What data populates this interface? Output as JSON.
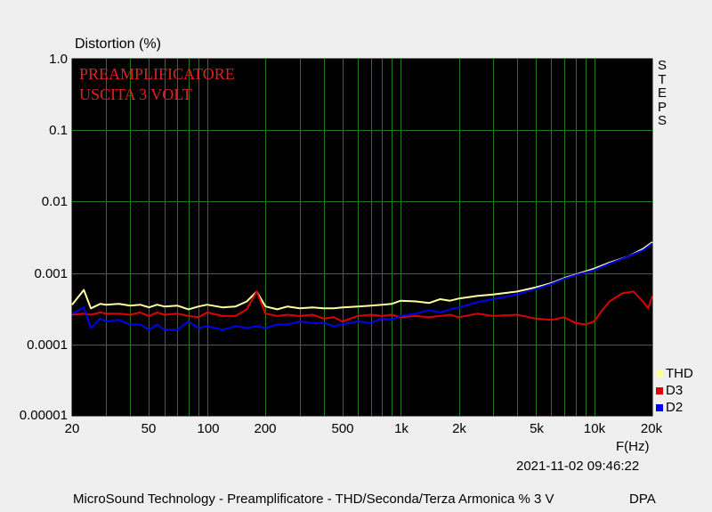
{
  "chart_data": {
    "type": "line",
    "ylabel": "Distortion (%)",
    "xlabel": "F(Hz)",
    "x_scale": "log",
    "y_scale": "log",
    "xlim": [
      20,
      20000
    ],
    "ylim": [
      1e-05,
      1.0
    ],
    "grid": true,
    "legend_position": "right-bottom",
    "x_ticks": [
      "20",
      "50",
      "100",
      "200",
      "500",
      "1k",
      "2k",
      "5k",
      "10k",
      "20k"
    ],
    "y_ticks": [
      "1.0",
      "0.1",
      "0.01",
      "0.001",
      "0.0001",
      "0.00001"
    ],
    "annotations": [
      "PREAMPLIFICATORE",
      "USCITA 3 VOLT"
    ],
    "side_label": "STEPS",
    "timestamp": "2021-11-02 09:46:22",
    "footer": "MicroSound Technology - Preamplificatore - THD/Seconda/Terza Armonica % 3 V",
    "footer_right": "DPA",
    "series": [
      {
        "name": "THD",
        "color": "#ffffa0",
        "x": [
          20,
          23,
          25,
          28,
          30,
          35,
          40,
          45,
          50,
          55,
          60,
          70,
          80,
          90,
          100,
          120,
          140,
          160,
          180,
          200,
          230,
          260,
          300,
          350,
          400,
          450,
          500,
          600,
          700,
          800,
          900,
          1000,
          1200,
          1400,
          1600,
          1800,
          2000,
          2500,
          3000,
          4000,
          5000,
          6000,
          7000,
          8000,
          10000,
          12000,
          15000,
          18000,
          20000
        ],
        "y": [
          0.00036,
          0.00058,
          0.00032,
          0.00037,
          0.00036,
          0.00037,
          0.00035,
          0.00036,
          0.00033,
          0.00036,
          0.00034,
          0.00035,
          0.00031,
          0.00034,
          0.00036,
          0.00033,
          0.00034,
          0.0004,
          0.00055,
          0.00034,
          0.00031,
          0.00034,
          0.00032,
          0.00033,
          0.00032,
          0.00032,
          0.00033,
          0.00034,
          0.00035,
          0.00036,
          0.00037,
          0.00041,
          0.0004,
          0.00038,
          0.00043,
          0.00041,
          0.00044,
          0.00048,
          0.0005,
          0.00055,
          0.00063,
          0.00072,
          0.00085,
          0.00095,
          0.00115,
          0.0014,
          0.0017,
          0.0022,
          0.0027
        ]
      },
      {
        "name": "D3",
        "color": "#dd0000",
        "x": [
          20,
          23,
          25,
          28,
          30,
          35,
          40,
          45,
          50,
          55,
          60,
          70,
          80,
          90,
          100,
          120,
          140,
          160,
          180,
          200,
          230,
          260,
          300,
          350,
          400,
          450,
          500,
          600,
          700,
          800,
          900,
          1000,
          1200,
          1400,
          1600,
          1800,
          2000,
          2500,
          3000,
          4000,
          5000,
          6000,
          7000,
          8000,
          9000,
          10000,
          11000,
          12000,
          14000,
          16000,
          18000,
          19000,
          20000
        ],
        "y": [
          0.00026,
          0.00027,
          0.00026,
          0.00028,
          0.00027,
          0.00027,
          0.00026,
          0.00028,
          0.00025,
          0.00028,
          0.00026,
          0.00027,
          0.00025,
          0.00024,
          0.00028,
          0.00025,
          0.00025,
          0.00031,
          0.00055,
          0.00027,
          0.00025,
          0.00026,
          0.00025,
          0.00026,
          0.00023,
          0.00024,
          0.00021,
          0.00025,
          0.00026,
          0.00025,
          0.00026,
          0.00024,
          0.00025,
          0.00024,
          0.00025,
          0.00026,
          0.00024,
          0.00027,
          0.00025,
          0.00026,
          0.00023,
          0.00022,
          0.00024,
          0.0002,
          0.00019,
          0.00021,
          0.0003,
          0.0004,
          0.00052,
          0.00055,
          0.00039,
          0.00032,
          0.00048
        ]
      },
      {
        "name": "D2",
        "color": "#0000ee",
        "x": [
          20,
          23,
          25,
          28,
          30,
          35,
          40,
          45,
          50,
          55,
          60,
          70,
          80,
          90,
          100,
          120,
          140,
          160,
          180,
          200,
          230,
          260,
          300,
          350,
          400,
          450,
          500,
          600,
          700,
          800,
          900,
          1000,
          1200,
          1400,
          1600,
          1800,
          2000,
          2500,
          3000,
          4000,
          5000,
          6000,
          7000,
          8000,
          10000,
          12000,
          15000,
          18000,
          20000
        ],
        "y": [
          0.00027,
          0.00033,
          0.00017,
          0.00023,
          0.00021,
          0.00022,
          0.00019,
          0.00019,
          0.00016,
          0.00019,
          0.00016,
          0.00016,
          0.00021,
          0.00017,
          0.00018,
          0.00016,
          0.00018,
          0.00017,
          0.00018,
          0.00017,
          0.00019,
          0.00019,
          0.00021,
          0.0002,
          0.0002,
          0.00018,
          0.00019,
          0.00021,
          0.0002,
          0.00023,
          0.00022,
          0.00025,
          0.00027,
          0.0003,
          0.00028,
          0.00031,
          0.00033,
          0.00039,
          0.00043,
          0.0005,
          0.0006,
          0.0007,
          0.00083,
          0.00093,
          0.0011,
          0.00135,
          0.0017,
          0.0021,
          0.0026
        ]
      }
    ]
  }
}
